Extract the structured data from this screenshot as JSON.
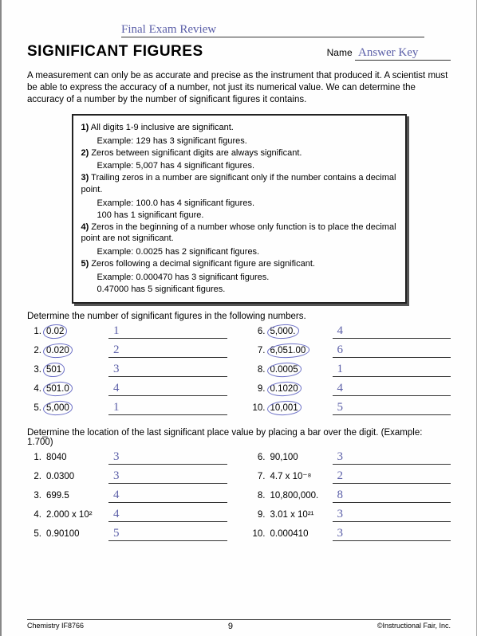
{
  "handwritten_top": "Final Exam Review",
  "title": "SIGNIFICANT FIGURES",
  "name_label": "Name",
  "name_value": "Answer Key",
  "intro": "A measurement can only be as accurate and precise as the instrument that produced it. A scientist must be able to express the accuracy of a number, not just its numerical value. We can determine the accuracy of a number by the number of significant figures it contains.",
  "rules": [
    {
      "n": "1)",
      "text": "All digits 1-9 inclusive are significant.",
      "ex": [
        "Example:  129 has 3 significant figures."
      ]
    },
    {
      "n": "2)",
      "text": "Zeros between significant digits are always significant.",
      "ex": [
        "Example:  5,007 has 4 significant figures."
      ]
    },
    {
      "n": "3)",
      "text": "Trailing zeros in a number are significant only if the number contains a decimal point.",
      "ex": [
        "Example:  100.0 has 4 significant figures.",
        "               100 has 1 significant figure."
      ]
    },
    {
      "n": "4)",
      "text": "Zeros in the beginning of a number whose only function is to place the decimal point are not significant.",
      "ex": [
        "Example:  0.0025 has 2 significant figures."
      ]
    },
    {
      "n": "5)",
      "text": "Zeros following a decimal significant figure are significant.",
      "ex": [
        "Example:  0.000470 has 3 significant figures.",
        "               0.47000 has 5 significant figures."
      ]
    }
  ],
  "section1_label": "Determine the number of significant figures in the following numbers.",
  "section1_left": [
    {
      "n": "1.",
      "v": "0.02",
      "circ": true,
      "a": "1"
    },
    {
      "n": "2.",
      "v": "0.020",
      "circ": true,
      "a": "2"
    },
    {
      "n": "3.",
      "v": "501",
      "circ": true,
      "a": "3"
    },
    {
      "n": "4.",
      "v": "501.0",
      "circ": true,
      "a": "4"
    },
    {
      "n": "5.",
      "v": "5,000",
      "circ": true,
      "a": "1"
    }
  ],
  "section1_right": [
    {
      "n": "6.",
      "v": "5,000.",
      "circ": true,
      "a": "4"
    },
    {
      "n": "7.",
      "v": "6,051.00",
      "circ": true,
      "a": "6"
    },
    {
      "n": "8.",
      "v": "0.0005",
      "circ": true,
      "a": "1"
    },
    {
      "n": "9.",
      "v": "0.1020",
      "circ": true,
      "a": "4"
    },
    {
      "n": "10.",
      "v": "10,001",
      "circ": true,
      "a": "5"
    }
  ],
  "section2_label": "Determine the location of the last significant place value by placing a bar over the digit. (Example:  1.70̅0)",
  "section2_left": [
    {
      "n": "1.",
      "v": "8040",
      "a": "3"
    },
    {
      "n": "2.",
      "v": "0.0300",
      "a": "3"
    },
    {
      "n": "3.",
      "v": "699.5",
      "a": "4"
    },
    {
      "n": "4.",
      "v": "2.000 x 10²",
      "a": "4"
    },
    {
      "n": "5.",
      "v": "0.90100",
      "a": "5"
    }
  ],
  "section2_right": [
    {
      "n": "6.",
      "v": "90,100",
      "a": "3"
    },
    {
      "n": "7.",
      "v": "4.7 x 10⁻⁸",
      "a": "2"
    },
    {
      "n": "8.",
      "v": "10,800,000.",
      "a": "8"
    },
    {
      "n": "9.",
      "v": "3.01 x 10²¹",
      "a": "3"
    },
    {
      "n": "10.",
      "v": "0.000410",
      "a": "3"
    }
  ],
  "footer_left": "Chemistry IF8766",
  "footer_center": "9",
  "footer_right": "©Instructional Fair, Inc.",
  "colors": {
    "ink": "#222",
    "hand": "#5b5fa8",
    "paper": "#fefefe"
  }
}
